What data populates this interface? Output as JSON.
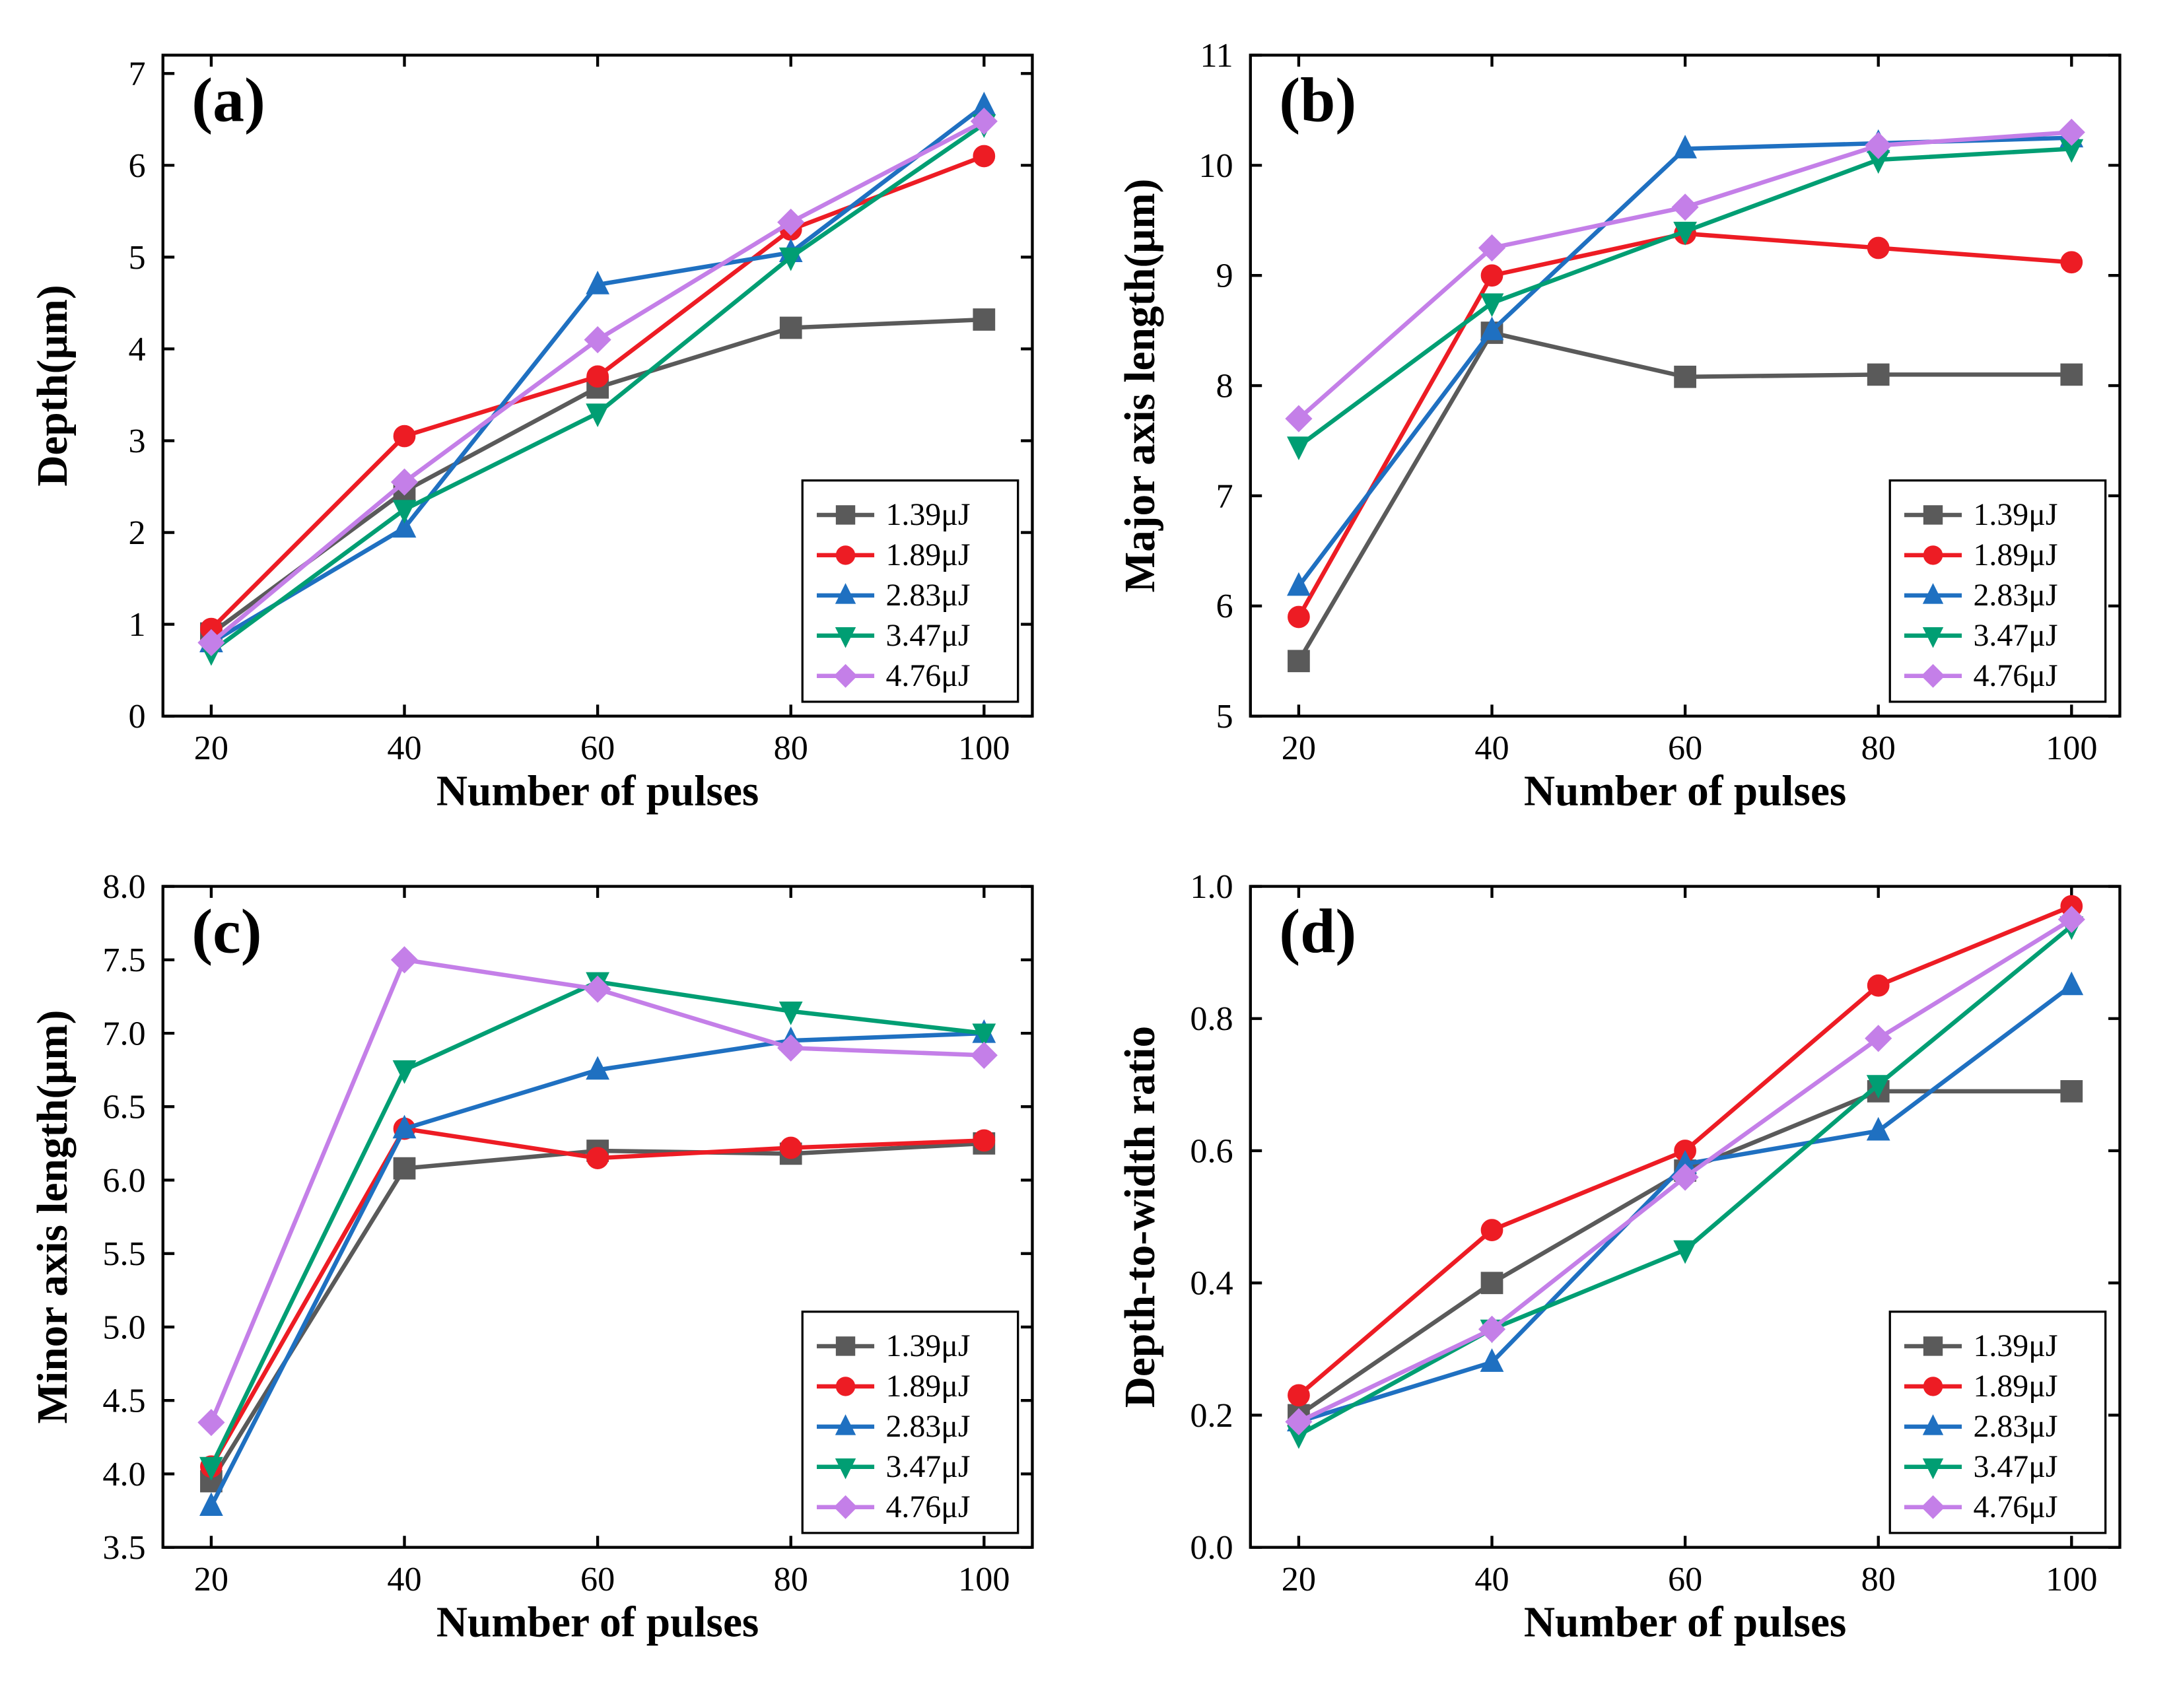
{
  "global": {
    "xlabel": "Number of pulses",
    "series_labels": [
      "1.39μJ",
      "1.89μJ",
      "2.83μJ",
      "3.47μJ",
      "4.76μJ"
    ],
    "colors": [
      "#5a5a5a",
      "#ed1c24",
      "#1f70c1",
      "#009e73",
      "#c47fe8"
    ],
    "markers": [
      "square",
      "circle",
      "triangle-up",
      "triangle-down",
      "diamond"
    ],
    "panel_bg": "#ffffff",
    "axis_color": "#000000",
    "line_width": 3,
    "marker_size": 7,
    "tick_fontsize": 24,
    "label_fontsize": 30,
    "panel_label_fontsize": 44
  },
  "panels": [
    {
      "id": "a",
      "panel_label": "(a)",
      "ylabel": "Depth(μm)",
      "xlim": [
        15,
        105
      ],
      "ylim": [
        0,
        7.2
      ],
      "xticks": [
        20,
        40,
        60,
        80,
        100
      ],
      "yticks": [
        0,
        1,
        2,
        3,
        4,
        5,
        6,
        7
      ],
      "x": [
        20,
        40,
        60,
        80,
        100
      ],
      "series": [
        [
          0.9,
          2.45,
          3.58,
          4.23,
          4.32
        ],
        [
          0.95,
          3.05,
          3.7,
          5.3,
          6.1
        ],
        [
          0.8,
          2.05,
          4.7,
          5.05,
          6.65
        ],
        [
          0.7,
          2.25,
          3.3,
          5.0,
          6.45
        ],
        [
          0.8,
          2.55,
          4.1,
          5.38,
          6.48
        ]
      ],
      "legend_pos": "br"
    },
    {
      "id": "b",
      "panel_label": "(b)",
      "ylabel": "Major axis length(μm)",
      "xlim": [
        15,
        105
      ],
      "ylim": [
        5.0,
        11.0
      ],
      "xticks": [
        20,
        40,
        60,
        80,
        100
      ],
      "yticks": [
        5,
        6,
        7,
        8,
        9,
        10,
        11
      ],
      "x": [
        20,
        40,
        60,
        80,
        100
      ],
      "series": [
        [
          5.5,
          8.48,
          8.08,
          8.1,
          8.1
        ],
        [
          5.9,
          9.0,
          9.38,
          9.25,
          9.12
        ],
        [
          6.18,
          8.5,
          10.15,
          10.2,
          10.25
        ],
        [
          7.45,
          8.75,
          9.4,
          10.05,
          10.15
        ],
        [
          7.7,
          9.25,
          9.62,
          10.18,
          10.3
        ]
      ],
      "legend_pos": "br"
    },
    {
      "id": "c",
      "panel_label": "(c)",
      "ylabel": "Minor axis length(μm)",
      "xlim": [
        15,
        105
      ],
      "ylim": [
        3.5,
        8.0
      ],
      "xticks": [
        20,
        40,
        60,
        80,
        100
      ],
      "yticks": [
        3.5,
        4.0,
        4.5,
        5.0,
        5.5,
        6.0,
        6.5,
        7.0,
        7.5,
        8.0
      ],
      "ytick_format": "fixed1",
      "x": [
        20,
        40,
        60,
        80,
        100
      ],
      "series": [
        [
          3.95,
          6.08,
          6.2,
          6.18,
          6.25
        ],
        [
          4.05,
          6.35,
          6.15,
          6.22,
          6.27
        ],
        [
          3.78,
          6.35,
          6.75,
          6.95,
          7.0
        ],
        [
          4.05,
          6.75,
          7.35,
          7.15,
          7.0
        ],
        [
          4.35,
          7.5,
          7.3,
          6.9,
          6.85
        ]
      ],
      "legend_pos": "br"
    },
    {
      "id": "d",
      "panel_label": "(d)",
      "ylabel": "Depth-to-width ratio",
      "xlim": [
        15,
        105
      ],
      "ylim": [
        0.0,
        1.0
      ],
      "xticks": [
        20,
        40,
        60,
        80,
        100
      ],
      "yticks": [
        0.0,
        0.2,
        0.4,
        0.6,
        0.8,
        1.0
      ],
      "ytick_format": "fixed1",
      "x": [
        20,
        40,
        60,
        80,
        100
      ],
      "series": [
        [
          0.2,
          0.4,
          0.57,
          0.69,
          0.69
        ],
        [
          0.23,
          0.48,
          0.6,
          0.85,
          0.97
        ],
        [
          0.19,
          0.28,
          0.58,
          0.63,
          0.85
        ],
        [
          0.17,
          0.33,
          0.45,
          0.7,
          0.94
        ],
        [
          0.19,
          0.33,
          0.56,
          0.77,
          0.95
        ]
      ],
      "legend_pos": "br"
    }
  ]
}
